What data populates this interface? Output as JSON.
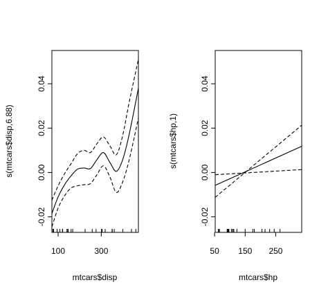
{
  "chart_data": [
    {
      "type": "line",
      "xlabel": "mtcars$disp",
      "ylabel": "s(mtcars$disp,6.88)",
      "xlim": [
        71.1,
        472
      ],
      "ylim": [
        -0.027,
        0.055
      ],
      "x_ticks": [
        100,
        300
      ],
      "y_ticks": [
        -0.02,
        0.0,
        0.02,
        0.04
      ],
      "y_tick_labels": [
        "-0.02",
        "0.00",
        "0.02",
        "0.04"
      ],
      "series": [
        {
          "style": "solid",
          "x": [
            71.1,
            100,
            130,
            160,
            190,
            220,
            250,
            280,
            310,
            340,
            370,
            400,
            430,
            472
          ],
          "y": [
            -0.0185,
            -0.011,
            -0.0055,
            -0.0015,
            0.0015,
            0.002,
            0.0018,
            0.0058,
            0.009,
            0.0045,
            0.0005,
            0.006,
            0.0175,
            0.038
          ]
        },
        {
          "style": "dashed",
          "x": [
            71.1,
            100,
            130,
            160,
            190,
            220,
            250,
            280,
            310,
            340,
            370,
            400,
            430,
            472
          ],
          "y": [
            -0.0125,
            -0.006,
            -0.0005,
            0.004,
            0.0085,
            0.01,
            0.009,
            0.013,
            0.016,
            0.012,
            0.008,
            0.017,
            0.032,
            0.051
          ]
        },
        {
          "style": "dashed",
          "x": [
            71.1,
            100,
            130,
            160,
            190,
            220,
            250,
            280,
            310,
            340,
            370,
            400,
            430,
            472
          ],
          "y": [
            -0.0245,
            -0.016,
            -0.0105,
            -0.007,
            -0.006,
            -0.0055,
            -0.005,
            -0.001,
            0.003,
            -0.002,
            -0.009,
            -0.004,
            0.006,
            0.0245
          ]
        }
      ],
      "rug": [
        71.1,
        75.7,
        78.7,
        79,
        95.1,
        108,
        120.1,
        120.3,
        121,
        140.8,
        145,
        146.7,
        160,
        167.6,
        225,
        258,
        275.8,
        301,
        304,
        318,
        350,
        351,
        360,
        400,
        440,
        460,
        472
      ]
    },
    {
      "type": "line",
      "xlabel": "mtcars$hp",
      "ylabel": "s(mtcars$hp,1)",
      "xlim": [
        52,
        335
      ],
      "ylim": [
        -0.027,
        0.055
      ],
      "x_ticks": [
        50,
        150,
        250
      ],
      "y_ticks": [
        -0.02,
        0.0,
        0.02,
        0.04
      ],
      "y_tick_labels": [
        "-0.02",
        "0.00",
        "0.02",
        "0.04"
      ],
      "series": [
        {
          "style": "solid",
          "x": [
            52,
            335
          ],
          "y": [
            -0.0058,
            0.0118
          ]
        },
        {
          "style": "dashed",
          "x": [
            52,
            335
          ],
          "y": [
            -0.0112,
            0.0213
          ]
        },
        {
          "style": "dashed",
          "x": [
            52,
            335
          ],
          "y": [
            -0.001,
            0.0013
          ]
        }
      ],
      "rug": [
        52,
        62,
        65,
        66,
        91,
        93,
        95,
        97,
        105,
        109,
        110,
        113,
        123,
        150,
        175,
        180,
        205,
        215,
        230,
        245,
        264,
        335
      ]
    }
  ]
}
